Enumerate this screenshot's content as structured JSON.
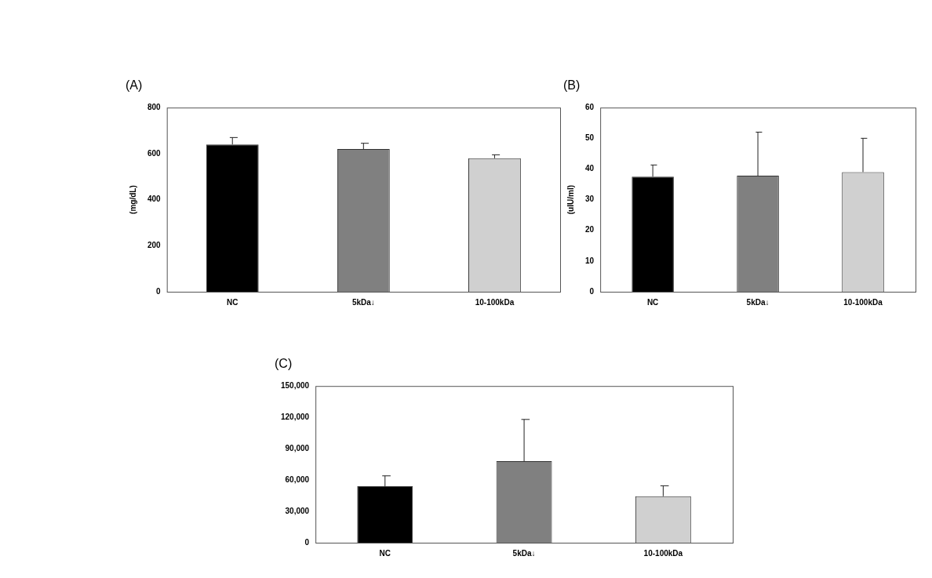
{
  "chart_data": [
    {
      "type": "bar",
      "title": "(A)",
      "y_label": "(mg/dL)",
      "categories": [
        "NC",
        "5kDa↓",
        "10-100kDa"
      ],
      "values": [
        640,
        620,
        580
      ],
      "errors": [
        30,
        25,
        15
      ],
      "colors": [
        "#000000",
        "#808080",
        "#d0d0d0"
      ],
      "ylim": [
        0,
        800
      ],
      "yticks": [
        0,
        200,
        400,
        600,
        800
      ],
      "grid": false
    },
    {
      "type": "bar",
      "title": "(B)",
      "y_label": "(uIU/ml)",
      "categories": [
        "NC",
        "5kDa↓",
        "10-100kDa"
      ],
      "values": [
        37.5,
        37.8,
        39
      ],
      "errors": [
        3.8,
        14.2,
        11
      ],
      "colors": [
        "#000000",
        "#808080",
        "#d0d0d0"
      ],
      "ylim": [
        0,
        60
      ],
      "yticks": [
        0,
        10,
        20,
        30,
        40,
        50,
        60
      ],
      "grid": false
    },
    {
      "type": "bar",
      "title": "(C)",
      "categories": [
        "NC",
        "5kDa↓",
        "10-100kDa"
      ],
      "values": [
        54000,
        78000,
        44500
      ],
      "errors": [
        10000,
        40000,
        10000
      ],
      "colors": [
        "#000000",
        "#808080",
        "#d0d0d0"
      ],
      "ylim": [
        0,
        150000
      ],
      "yticks": [
        0,
        {
          "value": 30000,
          "label": "30,000"
        },
        {
          "value": 60000,
          "label": "60,000"
        },
        {
          "value": 90000,
          "label": "90,000"
        },
        {
          "value": 120000,
          "label": "120,000"
        },
        {
          "value": 150000,
          "label": "150,000"
        }
      ],
      "grid": false
    }
  ]
}
